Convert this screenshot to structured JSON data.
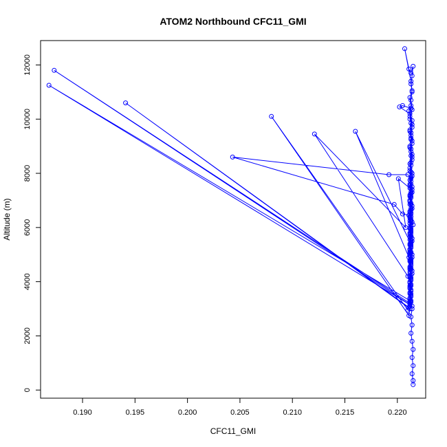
{
  "chart_data": {
    "type": "line",
    "title": "ATOM2 Northbound CFC11_GMI",
    "xlabel": "CFC11_GMI",
    "ylabel": "Altitude (m)",
    "xlim": [
      0.186,
      0.2227
    ],
    "ylim": [
      -300,
      12900
    ],
    "x_ticks": [
      0.19,
      0.195,
      0.2,
      0.205,
      0.21,
      0.215,
      0.22
    ],
    "x_tick_labels": [
      "0.190",
      "0.195",
      "0.200",
      "0.205",
      "0.210",
      "0.215",
      "0.220"
    ],
    "y_ticks": [
      0,
      2000,
      4000,
      6000,
      8000,
      10000,
      12000
    ],
    "y_tick_labels": [
      "0",
      "2000",
      "4000",
      "6000",
      "8000",
      "10000",
      "12000"
    ],
    "grid": false,
    "legend": "none",
    "colors": {
      "series": "#0000ff",
      "frame": "#000000"
    },
    "series": [
      {
        "markers": "open-circle",
        "points": [
          [
            0.2215,
            200
          ],
          [
            0.2215,
            350
          ],
          [
            0.2214,
            600
          ],
          [
            0.2215,
            900
          ],
          [
            0.2214,
            1200
          ],
          [
            0.2215,
            1500
          ],
          [
            0.2214,
            1800
          ],
          [
            0.2213,
            2100
          ],
          [
            0.2214,
            2400
          ],
          [
            0.2213,
            2700
          ],
          [
            0.2214,
            3000
          ],
          [
            0.2212,
            3300
          ],
          [
            0.1868,
            11250
          ],
          [
            0.2214,
            3100
          ],
          [
            0.2212,
            3400
          ],
          [
            0.2213,
            3700
          ],
          [
            0.2212,
            4000
          ],
          [
            0.2214,
            4300
          ],
          [
            0.2213,
            4600
          ],
          [
            0.2214,
            4900
          ],
          [
            0.2212,
            5200
          ],
          [
            0.2214,
            5500
          ],
          [
            0.2213,
            5800
          ],
          [
            0.2215,
            6100
          ],
          [
            0.2213,
            6400
          ],
          [
            0.2214,
            6700
          ],
          [
            0.2212,
            7000
          ],
          [
            0.2214,
            7300
          ],
          [
            0.2213,
            7600
          ],
          [
            0.2214,
            7900
          ],
          [
            0.2212,
            8200
          ],
          [
            0.2214,
            8500
          ],
          [
            0.2213,
            8800
          ],
          [
            0.2214,
            9100
          ],
          [
            0.2213,
            9400
          ],
          [
            0.2214,
            9700
          ],
          [
            0.2212,
            10000
          ],
          [
            0.2214,
            10350
          ],
          [
            0.2213,
            10700
          ],
          [
            0.2214,
            11000
          ],
          [
            0.2213,
            11300
          ],
          [
            0.2214,
            11600
          ],
          [
            0.2215,
            11950
          ],
          [
            0.2213,
            11700
          ],
          [
            0.2211,
            11850
          ],
          [
            0.2207,
            12600
          ],
          [
            0.2213,
            11400
          ],
          [
            0.2214,
            11050
          ],
          [
            0.2212,
            10800
          ],
          [
            0.2213,
            10500
          ],
          [
            0.2211,
            10300
          ],
          [
            0.2214,
            9950
          ],
          [
            0.2212,
            9600
          ],
          [
            0.2213,
            9300
          ],
          [
            0.2212,
            9000
          ],
          [
            0.2214,
            8700
          ],
          [
            0.2213,
            8400
          ],
          [
            0.2212,
            8100
          ],
          [
            0.2213,
            7800
          ],
          [
            0.2214,
            7500
          ],
          [
            0.2212,
            7200
          ],
          [
            0.2213,
            6900
          ],
          [
            0.2212,
            6600
          ],
          [
            0.2213,
            6300
          ],
          [
            0.2212,
            6000
          ],
          [
            0.2213,
            5700
          ],
          [
            0.2212,
            5400
          ],
          [
            0.2213,
            5100
          ],
          [
            0.2212,
            4800
          ],
          [
            0.2213,
            4500
          ],
          [
            0.2212,
            4200
          ],
          [
            0.2213,
            3900
          ],
          [
            0.2212,
            3600
          ],
          [
            0.2213,
            3300
          ],
          [
            0.2212,
            3200
          ],
          [
            0.1873,
            11800
          ],
          [
            0.2212,
            3150
          ],
          [
            0.2213,
            3500
          ],
          [
            0.2212,
            3800
          ],
          [
            0.2213,
            4100
          ],
          [
            0.2214,
            4400
          ],
          [
            0.2213,
            4700
          ],
          [
            0.2214,
            5000
          ],
          [
            0.2213,
            5300
          ],
          [
            0.2214,
            5600
          ],
          [
            0.2213,
            5900
          ],
          [
            0.2214,
            6200
          ],
          [
            0.2213,
            6500
          ],
          [
            0.2214,
            6800
          ],
          [
            0.2213,
            7100
          ],
          [
            0.2214,
            7400
          ],
          [
            0.2213,
            7700
          ],
          [
            0.2214,
            8000
          ],
          [
            0.2213,
            8300
          ],
          [
            0.2214,
            8600
          ],
          [
            0.2213,
            8900
          ],
          [
            0.2214,
            9200
          ],
          [
            0.2213,
            9500
          ],
          [
            0.2214,
            9800
          ],
          [
            0.2212,
            10100
          ],
          [
            0.2213,
            10400
          ],
          [
            0.2205,
            10500
          ],
          [
            0.2202,
            10450
          ],
          [
            0.2212,
            10200
          ],
          [
            0.2213,
            9850
          ],
          [
            0.2212,
            9550
          ],
          [
            0.2213,
            9250
          ],
          [
            0.2212,
            8950
          ],
          [
            0.2213,
            8650
          ],
          [
            0.2212,
            8350
          ],
          [
            0.2213,
            8050
          ],
          [
            0.2212,
            7750
          ],
          [
            0.2213,
            7450
          ],
          [
            0.2212,
            7150
          ],
          [
            0.2213,
            6850
          ],
          [
            0.2212,
            6550
          ],
          [
            0.2213,
            6250
          ],
          [
            0.2212,
            5950
          ],
          [
            0.2213,
            5650
          ],
          [
            0.2212,
            5350
          ],
          [
            0.2213,
            5050
          ],
          [
            0.2212,
            4750
          ],
          [
            0.2213,
            4450
          ],
          [
            0.2212,
            4150
          ],
          [
            0.2213,
            3850
          ],
          [
            0.2212,
            3550
          ],
          [
            0.2213,
            3250
          ],
          [
            0.2212,
            3000
          ],
          [
            0.1941,
            10600
          ],
          [
            0.2211,
            3050
          ],
          [
            0.2212,
            3350
          ],
          [
            0.2213,
            3650
          ],
          [
            0.2212,
            3950
          ],
          [
            0.2213,
            4250
          ],
          [
            0.2212,
            4550
          ],
          [
            0.2213,
            4850
          ],
          [
            0.2212,
            5150
          ],
          [
            0.2213,
            5450
          ],
          [
            0.2212,
            5750
          ],
          [
            0.2213,
            6050
          ],
          [
            0.2212,
            6350
          ],
          [
            0.2213,
            6650
          ],
          [
            0.2212,
            6950
          ],
          [
            0.2213,
            7250
          ],
          [
            0.2212,
            7550
          ],
          [
            0.2213,
            7850
          ],
          [
            0.221,
            7950
          ],
          [
            0.2192,
            7950
          ],
          [
            0.2043,
            8600
          ],
          [
            0.2197,
            6850
          ],
          [
            0.2205,
            6500
          ],
          [
            0.2211,
            6450
          ],
          [
            0.2212,
            6150
          ],
          [
            0.2213,
            5850
          ],
          [
            0.2212,
            5550
          ],
          [
            0.2213,
            5250
          ],
          [
            0.2212,
            4950
          ],
          [
            0.2213,
            4650
          ],
          [
            0.2212,
            4350
          ],
          [
            0.2213,
            4050
          ],
          [
            0.2212,
            3750
          ],
          [
            0.2213,
            3450
          ],
          [
            0.2211,
            2750
          ],
          [
            0.208,
            10100
          ],
          [
            0.221,
            2950
          ],
          [
            0.2212,
            3250
          ],
          [
            0.2213,
            3550
          ],
          [
            0.2212,
            3850
          ],
          [
            0.2213,
            4150
          ],
          [
            0.2212,
            4450
          ],
          [
            0.2213,
            4750
          ],
          [
            0.2212,
            5050
          ],
          [
            0.2213,
            5350
          ],
          [
            0.2212,
            5650
          ],
          [
            0.2213,
            5950
          ],
          [
            0.2212,
            6250
          ],
          [
            0.2213,
            6550
          ],
          [
            0.2212,
            6850
          ],
          [
            0.2213,
            7150
          ],
          [
            0.2212,
            7450
          ],
          [
            0.2201,
            7800
          ],
          [
            0.2208,
            6000
          ],
          [
            0.2121,
            9450
          ],
          [
            0.221,
            4200
          ],
          [
            0.2212,
            4500
          ],
          [
            0.2213,
            4800
          ],
          [
            0.2212,
            5100
          ],
          [
            0.2213,
            5400
          ],
          [
            0.216,
            9550
          ],
          [
            0.2211,
            4900
          ],
          [
            0.2212,
            5200
          ],
          [
            0.2213,
            5500
          ],
          [
            0.2212,
            5800
          ],
          [
            0.2213,
            6100
          ],
          [
            0.2212,
            6400
          ],
          [
            0.2213,
            6700
          ],
          [
            0.2212,
            7000
          ],
          [
            0.2213,
            7300
          ],
          [
            0.2212,
            7600
          ]
        ]
      }
    ]
  }
}
